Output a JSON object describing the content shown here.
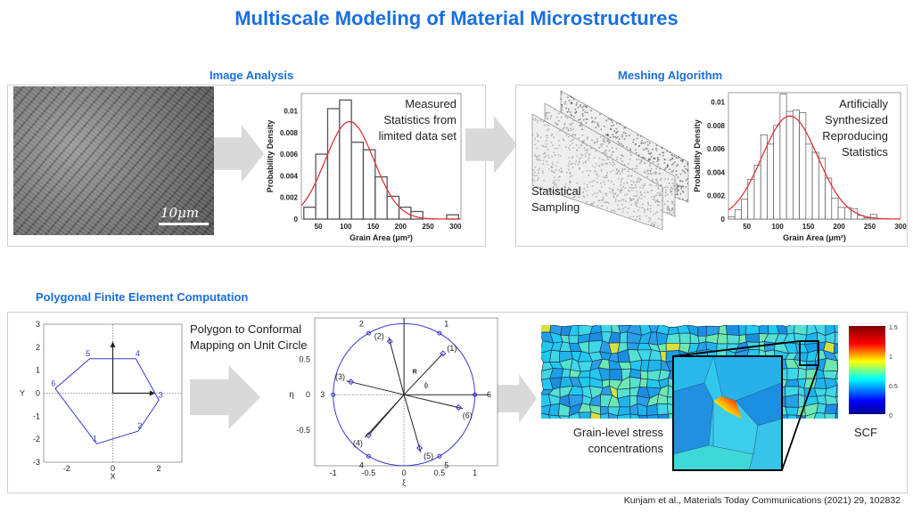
{
  "title": "Multiscale Modeling of Material Microstructures",
  "sections": {
    "image_analysis": "Image Analysis",
    "meshing": "Meshing Algorithm",
    "polygonal": "Polygonal Finite Element Computation"
  },
  "sem": {
    "scale_label": "10μm"
  },
  "notes": {
    "measured": "Measured Statistics from limited data set",
    "synth": "Artificially Synthesized Reproducing Statistics",
    "sampling": "Statistical Sampling",
    "mapping": "Polygon to Conformal Mapping on Unit Circle",
    "stress": "Grain-level stress concentrations",
    "scf": "SCF"
  },
  "colorbar": {
    "ticks": [
      "1.5",
      "1",
      "0.5",
      "0"
    ],
    "colors": [
      "#800000",
      "#ff0000",
      "#ffff00",
      "#00ffff",
      "#0000ff",
      "#00008f"
    ]
  },
  "citation": "Kunjam et al., Materials Today Communications (2021) 29, 102832",
  "colors": {
    "accent": "#1a6fe0",
    "fit": "#e0343a",
    "polygon": "#3a3ad0",
    "arrow": "#d9d9d9"
  },
  "chart_data": [
    {
      "type": "bar",
      "title": "Measured",
      "xlabel": "Grain Area (μm²)",
      "ylabel": "Probability Density",
      "xlim": [
        19,
        310
      ],
      "ylim": [
        0,
        0.0116
      ],
      "xticks": [
        50,
        100,
        150,
        200,
        250,
        300
      ],
      "yticks": [
        0,
        0.002,
        0.004,
        0.006,
        0.008,
        0.01
      ],
      "bin_start": 23.5,
      "bin_width": 21.7,
      "values": [
        0.0011,
        0.006,
        0.0102,
        0.011,
        0.0071,
        0.0064,
        0.0039,
        0.0021,
        0.0011,
        0.0007,
        0,
        0,
        0.0004
      ],
      "fit": {
        "type": "normal",
        "mean": 107,
        "sd": 44.3
      }
    },
    {
      "type": "bar",
      "title": "Synthesized",
      "xlabel": "Grain Area (μm²)",
      "ylabel": "Probability Density",
      "xlim": [
        20,
        300
      ],
      "ylim": [
        0,
        0.0108
      ],
      "xticks": [
        50,
        100,
        150,
        200,
        250,
        300
      ],
      "yticks": [
        0,
        0.002,
        0.004,
        0.006,
        0.008,
        0.01
      ],
      "bin_start": 20,
      "bin_width": 10.5,
      "values": [
        0.0002,
        0.0008,
        0.0017,
        0.0034,
        0.0046,
        0.0072,
        0.0064,
        0.008,
        0.0107,
        0.0092,
        0.0093,
        0.0091,
        0.0064,
        0.0057,
        0.0052,
        0.0035,
        0.0018,
        0.001,
        0.001,
        0.0009,
        0.0003,
        0.0001,
        0.0004
      ],
      "fit": {
        "type": "normal",
        "mean": 120,
        "sd": 45.3
      }
    },
    {
      "type": "line",
      "title": "Polygon",
      "xlabel": "X",
      "ylabel": "Y",
      "xlim": [
        -3,
        3
      ],
      "ylim": [
        -3,
        3
      ],
      "xticks": [
        -2,
        0,
        2
      ],
      "yticks": [
        3,
        2,
        1,
        0,
        -1,
        -2,
        -3
      ],
      "vertices": [
        {
          "label": "1",
          "x": -0.7,
          "y": -2.2
        },
        {
          "label": "2",
          "x": 1.1,
          "y": -1.65
        },
        {
          "label": "3",
          "x": 2.0,
          "y": -0.3
        },
        {
          "label": "4",
          "x": 1.0,
          "y": 1.5
        },
        {
          "label": "5",
          "x": -1.0,
          "y": 1.5
        },
        {
          "label": "6",
          "x": -2.5,
          "y": 0.2
        }
      ]
    },
    {
      "type": "scatter",
      "title": "Unit circle",
      "xlabel": "ξ",
      "ylabel": "η",
      "xlim": [
        -1.26,
        1.32
      ],
      "ylim": [
        -1.0,
        1.08
      ],
      "xticks": [
        -1,
        -0.5,
        0,
        0.5,
        1
      ],
      "yticks": [
        0.5,
        0,
        -0.5
      ],
      "annotations": {
        "radius": "R",
        "angle": "ϕ"
      },
      "circle_points": [
        {
          "label": "1",
          "x": 0.5,
          "y": 0.866
        },
        {
          "label": "2",
          "x": -0.5,
          "y": 0.866
        },
        {
          "label": "3",
          "x": -1,
          "y": 0
        },
        {
          "label": "4",
          "x": -0.5,
          "y": -0.866
        },
        {
          "label": "5",
          "x": 0.5,
          "y": -0.866
        },
        {
          "label": "6",
          "x": 1,
          "y": 0
        }
      ],
      "inner_points": [
        {
          "label": "(1)",
          "x": 0.55,
          "y": 0.58
        },
        {
          "label": "(2)",
          "x": -0.2,
          "y": 0.75
        },
        {
          "label": "(3)",
          "x": -0.75,
          "y": 0.18
        },
        {
          "label": "(4)",
          "x": -0.5,
          "y": -0.57
        },
        {
          "label": "(5)",
          "x": 0.22,
          "y": -0.75
        },
        {
          "label": "(6)",
          "x": 0.77,
          "y": -0.18
        }
      ]
    }
  ]
}
